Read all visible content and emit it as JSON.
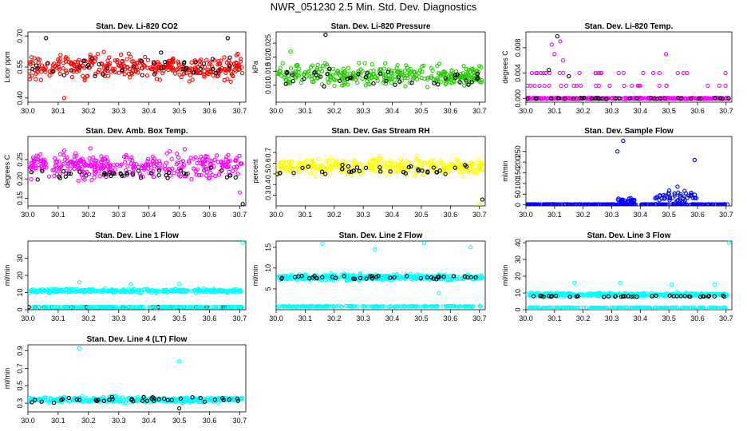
{
  "title": "NWR_051230  2.5 Min. Std. Dev. Diagnostics",
  "colors": {
    "red": "#ff0000",
    "green": "#22cc00",
    "magenta": "#ff00ff",
    "yellow": "#ffff00",
    "blue": "#0000ff",
    "cyan": "#00ffff",
    "black": "#000000"
  },
  "chart_data": [
    {
      "type": "scatter",
      "title": "Stan. Dev. Li-820 CO2",
      "ylabel": "Licor ppm",
      "xlim": [
        30.0,
        30.72
      ],
      "ylim": [
        0.38,
        0.72
      ],
      "xticks": [
        "30.0",
        "30.1",
        "30.2",
        "30.3",
        "30.4",
        "30.5",
        "30.6",
        "30.7"
      ],
      "yticks": [
        0.4,
        0.55,
        0.7
      ],
      "ytick_labels": [
        "0.40",
        "0.55",
        "0.70"
      ],
      "series": [
        {
          "name": "data",
          "color": "red",
          "pattern": "band",
          "center": 0.55,
          "spread": 0.055,
          "n": 340
        },
        {
          "name": "flagged",
          "color": "black",
          "pattern": "band",
          "center": 0.55,
          "spread": 0.05,
          "n": 40
        }
      ],
      "outliers": [
        {
          "x": 30.06,
          "y": 0.69,
          "color": "black"
        },
        {
          "x": 30.12,
          "y": 0.4,
          "color": "red"
        },
        {
          "x": 30.44,
          "y": 0.62,
          "color": "black"
        },
        {
          "x": 30.66,
          "y": 0.69,
          "color": "black"
        }
      ]
    },
    {
      "type": "scatter",
      "title": "Stan. Dev. Li-820 Pressure",
      "ylabel": "kPa",
      "xlim": [
        30.0,
        30.72
      ],
      "ylim": [
        0.004,
        0.029
      ],
      "xticks": [
        "30.0",
        "30.1",
        "30.2",
        "30.3",
        "30.4",
        "30.5",
        "30.6",
        "30.7"
      ],
      "yticks": [
        0.01,
        0.015,
        0.02,
        0.025
      ],
      "ytick_labels": [
        "0.010",
        "0.015",
        "0.020",
        "0.025"
      ],
      "series": [
        {
          "name": "data",
          "color": "green",
          "pattern": "band",
          "center": 0.0135,
          "spread": 0.0035,
          "n": 340
        },
        {
          "name": "flagged",
          "color": "black",
          "pattern": "band",
          "center": 0.0125,
          "spread": 0.003,
          "n": 40
        }
      ],
      "outliers": [
        {
          "x": 30.17,
          "y": 0.028,
          "color": "black"
        },
        {
          "x": 30.05,
          "y": 0.022,
          "color": "green"
        }
      ]
    },
    {
      "type": "scatter",
      "title": "Stan. Dev. Li-820 Temp.",
      "ylabel": "degrees C",
      "xlim": [
        30.0,
        30.72
      ],
      "ylim": [
        -0.0006,
        0.0105
      ],
      "xticks": [
        "30.0",
        "30.1",
        "30.2",
        "30.3",
        "30.4",
        "30.5",
        "30.6",
        "30.7"
      ],
      "yticks": [
        0.0,
        0.004,
        0.008
      ],
      "ytick_labels": [
        "0.000",
        "0.004",
        "0.008"
      ],
      "series": [
        {
          "name": "baseline",
          "color": "magenta",
          "pattern": "flat",
          "center": 0.0,
          "spread": 0.0001,
          "n": 300
        },
        {
          "name": "flagged",
          "color": "black",
          "pattern": "flat",
          "center": 0.0,
          "spread": 0.0001,
          "n": 40
        },
        {
          "name": "steps",
          "color": "magenta",
          "pattern": "discrete",
          "levels": [
            0.002,
            0.004
          ],
          "n": 50
        }
      ],
      "outliers": [
        {
          "x": 30.09,
          "y": 0.0085,
          "color": "magenta"
        },
        {
          "x": 30.11,
          "y": 0.0098,
          "color": "black"
        },
        {
          "x": 30.12,
          "y": 0.009,
          "color": "magenta"
        },
        {
          "x": 30.1,
          "y": 0.007,
          "color": "magenta"
        },
        {
          "x": 30.13,
          "y": 0.006,
          "color": "magenta"
        },
        {
          "x": 30.08,
          "y": 0.0045,
          "color": "black"
        },
        {
          "x": 30.15,
          "y": 0.0035,
          "color": "black"
        },
        {
          "x": 30.49,
          "y": 0.007,
          "color": "magenta"
        }
      ]
    },
    {
      "type": "scatter",
      "title": "Stan. Dev. Amb. Box Temp.",
      "ylabel": "degrees C",
      "xlim": [
        30.0,
        30.72
      ],
      "ylim": [
        0.13,
        0.31
      ],
      "xticks": [
        "30.0",
        "30.1",
        "30.2",
        "30.3",
        "30.4",
        "30.5",
        "30.6",
        "30.7"
      ],
      "yticks": [
        0.15,
        0.2,
        0.25
      ],
      "ytick_labels": [
        "0.15",
        "0.20",
        "0.25"
      ],
      "series": [
        {
          "name": "data",
          "color": "magenta",
          "pattern": "band",
          "center": 0.235,
          "spread": 0.03,
          "n": 340
        },
        {
          "name": "flagged",
          "color": "black",
          "pattern": "band",
          "center": 0.21,
          "spread": 0.015,
          "n": 40
        }
      ],
      "outliers": [
        {
          "x": 30.71,
          "y": 0.135,
          "color": "black"
        },
        {
          "x": 30.7,
          "y": 0.165,
          "color": "magenta"
        }
      ]
    },
    {
      "type": "scatter",
      "title": "Stan. Dev. Gas Stream RH",
      "ylabel": "percent",
      "xlim": [
        30.0,
        30.72
      ],
      "ylim": [
        0.2,
        0.85
      ],
      "xticks": [
        "30.0",
        "30.1",
        "30.2",
        "30.3",
        "30.4",
        "30.5",
        "30.6",
        "30.7"
      ],
      "yticks": [
        0.3,
        0.4,
        0.5,
        0.6,
        0.7
      ],
      "ytick_labels": [
        "0.3",
        "0.4",
        "0.5",
        "0.6",
        "0.7"
      ],
      "series": [
        {
          "name": "data",
          "color": "yellow",
          "pattern": "band",
          "center": 0.57,
          "spread": 0.07,
          "n": 340
        },
        {
          "name": "flagged",
          "color": "black",
          "pattern": "band",
          "center": 0.53,
          "spread": 0.06,
          "n": 40
        }
      ],
      "outliers": [
        {
          "x": 30.71,
          "y": 0.26,
          "color": "black"
        },
        {
          "x": 30.7,
          "y": 0.22,
          "color": "yellow"
        }
      ]
    },
    {
      "type": "scatter",
      "title": "Stan. Dev. Sample Flow",
      "ylabel": "ml/min",
      "xlim": [
        30.0,
        30.72
      ],
      "ylim": [
        -5,
        320
      ],
      "xticks": [
        "30.0",
        "30.1",
        "30.2",
        "30.3",
        "30.4",
        "30.5",
        "30.6",
        "30.7"
      ],
      "yticks": [
        0,
        50,
        100,
        150,
        200,
        250
      ],
      "ytick_labels": [
        "0",
        "50",
        "100",
        "150",
        "200",
        "250"
      ],
      "series": [
        {
          "name": "baseline",
          "color": "blue",
          "pattern": "flat",
          "center": 2,
          "spread": 1,
          "n": 300
        },
        {
          "name": "cluster1",
          "color": "blue",
          "pattern": "cluster",
          "xrange": [
            30.32,
            30.38
          ],
          "center": 20,
          "spread": 12,
          "n": 30
        },
        {
          "name": "cluster2",
          "color": "blue",
          "pattern": "cluster",
          "xrange": [
            30.45,
            30.6
          ],
          "center": 40,
          "spread": 25,
          "n": 50
        }
      ],
      "outliers": [
        {
          "x": 30.32,
          "y": 250,
          "color": "blue"
        },
        {
          "x": 30.34,
          "y": 300,
          "color": "blue"
        },
        {
          "x": 30.59,
          "y": 210,
          "color": "blue"
        },
        {
          "x": 30.53,
          "y": 85,
          "color": "blue"
        }
      ]
    },
    {
      "type": "scatter",
      "title": "Stan. Dev. Line 1 Flow",
      "ylabel": "ml/min",
      "xlim": [
        30.0,
        30.72
      ],
      "ylim": [
        0,
        40
      ],
      "xticks": [
        "30.0",
        "30.1",
        "30.2",
        "30.3",
        "30.4",
        "30.5",
        "30.6",
        "30.7"
      ],
      "yticks": [
        0,
        10,
        20,
        30
      ],
      "ytick_labels": [
        "0",
        "10",
        "20",
        "30"
      ],
      "series": [
        {
          "name": "line1",
          "color": "cyan",
          "pattern": "band",
          "center": 11,
          "spread": 1.0,
          "n": 360
        },
        {
          "name": "flagged",
          "color": "black",
          "pattern": "flat",
          "center": 1.5,
          "spread": 0.15,
          "n": 40
        },
        {
          "name": "baseline",
          "color": "cyan",
          "pattern": "flat",
          "center": 1.5,
          "spread": 0.15,
          "n": 200
        }
      ],
      "outliers": [
        {
          "x": 30.71,
          "y": 39,
          "color": "cyan"
        },
        {
          "x": 30.17,
          "y": 16,
          "color": "cyan"
        },
        {
          "x": 30.34,
          "y": 15,
          "color": "cyan"
        },
        {
          "x": 30.5,
          "y": 15,
          "color": "cyan"
        }
      ]
    },
    {
      "type": "scatter",
      "title": "Stan. Dev. Line 2 Flow",
      "ylabel": "ml/min",
      "xlim": [
        30.0,
        30.72
      ],
      "ylim": [
        0,
        16.5
      ],
      "xticks": [
        "30.0",
        "30.1",
        "30.2",
        "30.3",
        "30.4",
        "30.5",
        "30.6",
        "30.7"
      ],
      "yticks": [
        5,
        10,
        15
      ],
      "ytick_labels": [
        "5",
        "10",
        "15"
      ],
      "series": [
        {
          "name": "line2",
          "color": "cyan",
          "pattern": "band",
          "center": 7.8,
          "spread": 0.7,
          "n": 360
        },
        {
          "name": "flagged",
          "color": "black",
          "pattern": "band",
          "center": 7.8,
          "spread": 0.5,
          "n": 40
        },
        {
          "name": "baseline",
          "color": "cyan",
          "pattern": "flat",
          "center": 0.8,
          "spread": 0.1,
          "n": 200
        }
      ],
      "outliers": [
        {
          "x": 30.16,
          "y": 15.8,
          "color": "cyan"
        },
        {
          "x": 30.34,
          "y": 14.5,
          "color": "cyan"
        },
        {
          "x": 30.51,
          "y": 16,
          "color": "cyan"
        },
        {
          "x": 30.67,
          "y": 15,
          "color": "cyan"
        },
        {
          "x": 30.56,
          "y": 4,
          "color": "cyan"
        }
      ]
    },
    {
      "type": "scatter",
      "title": "Stan. Dev. Line 3 Flow",
      "ylabel": "ml/min",
      "xlim": [
        30.0,
        30.72
      ],
      "ylim": [
        0,
        41
      ],
      "xticks": [
        "30.0",
        "30.1",
        "30.2",
        "30.3",
        "30.4",
        "30.5",
        "30.6",
        "30.7"
      ],
      "yticks": [
        0,
        10,
        20,
        30,
        40
      ],
      "ytick_labels": [
        "0",
        "10",
        "20",
        "30",
        "40"
      ],
      "series": [
        {
          "name": "line3",
          "color": "cyan",
          "pattern": "band",
          "center": 9,
          "spread": 1.0,
          "n": 360
        },
        {
          "name": "flagged",
          "color": "black",
          "pattern": "band",
          "center": 8,
          "spread": 0.5,
          "n": 40
        },
        {
          "name": "baseline",
          "color": "cyan",
          "pattern": "flat",
          "center": 1.2,
          "spread": 0.15,
          "n": 200
        }
      ],
      "outliers": [
        {
          "x": 30.71,
          "y": 40,
          "color": "cyan"
        },
        {
          "x": 30.17,
          "y": 16,
          "color": "cyan"
        },
        {
          "x": 30.33,
          "y": 16,
          "color": "cyan"
        },
        {
          "x": 30.51,
          "y": 15,
          "color": "cyan"
        },
        {
          "x": 30.66,
          "y": 15,
          "color": "cyan"
        }
      ]
    },
    {
      "type": "scatter",
      "title": "Stan. Dev. Line 4 (LT) Flow",
      "ylabel": "ml/min",
      "xlim": [
        30.0,
        30.72
      ],
      "ylim": [
        0.2,
        0.97
      ],
      "xticks": [
        "30.0",
        "30.1",
        "30.2",
        "30.3",
        "30.4",
        "30.5",
        "30.6",
        "30.7"
      ],
      "yticks": [
        0.3,
        0.5,
        0.7,
        0.9
      ],
      "ytick_labels": [
        "0.3",
        "0.5",
        "0.7",
        "0.9"
      ],
      "series": [
        {
          "name": "line4",
          "color": "cyan",
          "pattern": "band",
          "center": 0.34,
          "spread": 0.03,
          "n": 360
        },
        {
          "name": "flagged",
          "color": "black",
          "pattern": "band",
          "center": 0.34,
          "spread": 0.03,
          "n": 40
        }
      ],
      "outliers": [
        {
          "x": 30.17,
          "y": 0.93,
          "color": "cyan"
        },
        {
          "x": 30.5,
          "y": 0.78,
          "color": "cyan"
        },
        {
          "x": 30.5,
          "y": 0.24,
          "color": "black"
        }
      ]
    }
  ]
}
